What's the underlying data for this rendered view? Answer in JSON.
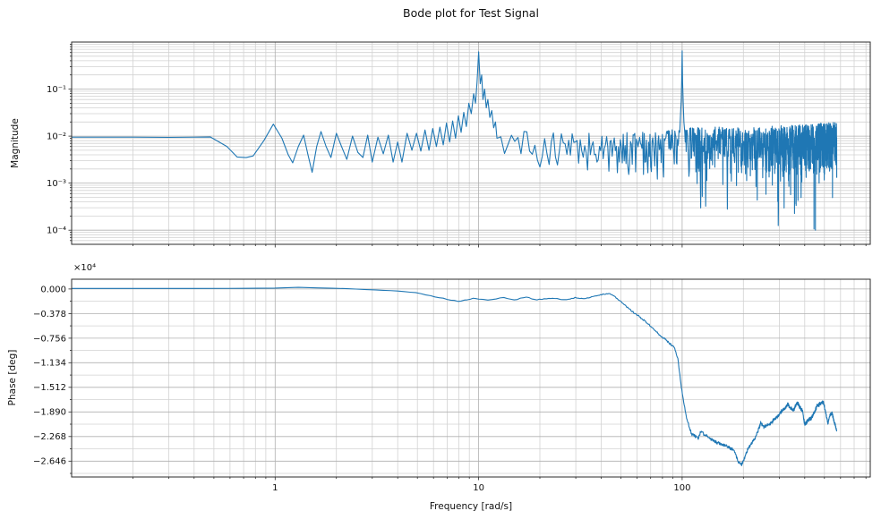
{
  "figure_title": "Bode plot for Test Signal",
  "colors": {
    "line": "#1f77b4",
    "grid_major": "#b0b0b0",
    "grid_minor": "#d2d2d2",
    "spine": "#2b2b2b",
    "text": "#111111",
    "background": "#ffffff"
  },
  "chart_data": [
    {
      "type": "line",
      "id": "magnitude",
      "ylabel": "Magnitude",
      "xscale": "log",
      "yscale": "log",
      "xlim": [
        0.1,
        840
      ],
      "ylim": [
        5e-05,
        1.0
      ],
      "grid": "both",
      "x_major_ticks": [
        1,
        10,
        100
      ],
      "x_major_labels": [
        "1",
        "10",
        "100"
      ],
      "show_x_labels": false,
      "y_major_ticks": [
        0.1,
        0.01,
        0.001,
        0.0001
      ],
      "y_major_labels": [
        "10⁻¹",
        "10⁻²",
        "10⁻³",
        "10⁻⁴"
      ],
      "segments": [
        {
          "type": "points",
          "pts": [
            [
              0.1,
              0.0095
            ],
            [
              0.2,
              0.0095
            ],
            [
              0.3,
              0.0094
            ],
            [
              0.4,
              0.0095
            ],
            [
              0.48,
              0.0096
            ],
            [
              0.58,
              0.006
            ],
            [
              0.65,
              0.0036
            ],
            [
              0.72,
              0.0035
            ],
            [
              0.78,
              0.0038
            ],
            [
              0.88,
              0.008
            ],
            [
              0.98,
              0.018
            ],
            [
              1.08,
              0.009
            ],
            [
              1.16,
              0.004
            ],
            [
              1.22,
              0.0027
            ],
            [
              1.3,
              0.006
            ],
            [
              1.38,
              0.0105
            ],
            [
              1.45,
              0.004
            ],
            [
              1.52,
              0.0017
            ],
            [
              1.6,
              0.006
            ],
            [
              1.68,
              0.0125
            ],
            [
              1.78,
              0.006
            ],
            [
              1.88,
              0.0035
            ],
            [
              2.0,
              0.0115
            ],
            [
              2.12,
              0.006
            ],
            [
              2.25,
              0.0032
            ],
            [
              2.4,
              0.01
            ],
            [
              2.55,
              0.0045
            ],
            [
              2.7,
              0.0035
            ],
            [
              2.85,
              0.0105
            ],
            [
              3.0,
              0.0028
            ],
            [
              3.2,
              0.0095
            ],
            [
              3.4,
              0.0042
            ],
            [
              3.6,
              0.0105
            ],
            [
              3.8,
              0.0028
            ],
            [
              4.0,
              0.0075
            ],
            [
              4.2,
              0.0028
            ],
            [
              4.45,
              0.0115
            ],
            [
              4.7,
              0.005
            ],
            [
              4.95,
              0.0115
            ],
            [
              5.2,
              0.0048
            ],
            [
              5.45,
              0.0135
            ],
            [
              5.7,
              0.005
            ],
            [
              5.95,
              0.0145
            ],
            [
              6.2,
              0.006
            ],
            [
              6.45,
              0.0155
            ],
            [
              6.7,
              0.0065
            ],
            [
              6.95,
              0.019
            ],
            [
              7.2,
              0.0075
            ],
            [
              7.45,
              0.021
            ],
            [
              7.7,
              0.009
            ],
            [
              7.95,
              0.027
            ],
            [
              8.2,
              0.012
            ],
            [
              8.45,
              0.032
            ],
            [
              8.7,
              0.016
            ],
            [
              8.95,
              0.05
            ],
            [
              9.2,
              0.03
            ],
            [
              9.45,
              0.08
            ],
            [
              9.65,
              0.05
            ],
            [
              9.82,
              0.14
            ],
            [
              10.0,
              0.62
            ],
            [
              10.18,
              0.13
            ],
            [
              10.35,
              0.2
            ],
            [
              10.5,
              0.06
            ],
            [
              10.7,
              0.1
            ],
            [
              10.9,
              0.04
            ],
            [
              11.1,
              0.06
            ],
            [
              11.35,
              0.025
            ],
            [
              11.6,
              0.035
            ],
            [
              11.85,
              0.015
            ],
            [
              12.1,
              0.02
            ],
            [
              12.3,
              0.009
            ]
          ]
        },
        {
          "type": "noise",
          "f0": 12.85,
          "f1": 96.5,
          "df": 0.55,
          "seed": 1234567,
          "hi": [
            [
              12,
              -1.85
            ],
            [
              30,
              -1.95
            ],
            [
              60,
              -1.9
            ],
            [
              96,
              -1.85
            ]
          ],
          "depth": 1.05,
          "spike_p": 0.05,
          "spike_extra": 1.1,
          "floor": -3.6
        },
        {
          "type": "points",
          "pts": [
            [
              97.3,
              0.012
            ],
            [
              98.2,
              0.03
            ],
            [
              99.0,
              0.06
            ],
            [
              99.5,
              0.16
            ],
            [
              100.0,
              0.65
            ],
            [
              100.5,
              0.14
            ],
            [
              101.2,
              0.05
            ],
            [
              102.0,
              0.02
            ],
            [
              103.0,
              0.012
            ]
          ]
        },
        {
          "type": "noise",
          "f0": 103.55,
          "f1": 575,
          "df": 0.55,
          "seed": 424242,
          "hi": [
            [
              103,
              -1.78
            ],
            [
              200,
              -1.82
            ],
            [
              400,
              -1.75
            ],
            [
              575,
              -1.68
            ]
          ],
          "depth": 1.25,
          "spike_p": 0.07,
          "spike_extra": 1.6,
          "floor": -4.1
        }
      ]
    },
    {
      "type": "line",
      "id": "phase",
      "ylabel": "Phase [deg]",
      "xlabel": "Frequency [rad/s]",
      "xscale": "log",
      "yscale": "linear",
      "xlim": [
        0.1,
        840
      ],
      "ylim": [
        -28900,
        1500
      ],
      "grid": "both",
      "x_major_ticks": [
        1,
        10,
        100
      ],
      "x_major_labels": [
        "1",
        "10",
        "100"
      ],
      "show_x_labels": true,
      "y_major_ticks": [
        0,
        -3780,
        -7560,
        -11340,
        -15120,
        -18900,
        -22680,
        -26460
      ],
      "y_major_labels": [
        "0.000",
        "−0.378",
        "−0.756",
        "−1.134",
        "−1.512",
        "−1.890",
        "−2.268",
        "−2.646"
      ],
      "y_minor_step": 1890,
      "offset_text": "×10⁴",
      "base_anchors": [
        [
          0.1,
          80
        ],
        [
          0.5,
          80
        ],
        [
          1.0,
          120
        ],
        [
          1.3,
          260
        ],
        [
          1.7,
          150
        ],
        [
          2.2,
          60
        ],
        [
          3.0,
          -120
        ],
        [
          3.9,
          -290
        ],
        [
          4.9,
          -560
        ],
        [
          6.2,
          -1240
        ],
        [
          7.9,
          -1930
        ],
        [
          8.6,
          -1650
        ],
        [
          9.5,
          -1450
        ],
        [
          11,
          -1750
        ],
        [
          13,
          -1350
        ],
        [
          15,
          -1600
        ],
        [
          17,
          -1300
        ],
        [
          20,
          -1650
        ],
        [
          23,
          -1400
        ],
        [
          26,
          -1700
        ],
        [
          30,
          -1350
        ],
        [
          33,
          -1600
        ],
        [
          36,
          -1200
        ],
        [
          40,
          -900
        ],
        [
          43,
          -700
        ],
        [
          45,
          -830
        ],
        [
          47,
          -1300
        ],
        [
          50,
          -1930
        ],
        [
          57,
          -3440
        ],
        [
          65,
          -4810
        ],
        [
          74,
          -6460
        ],
        [
          80,
          -7420
        ],
        [
          86,
          -8250
        ],
        [
          91,
          -8930
        ],
        [
          95,
          -10500
        ],
        [
          100,
          -16000
        ],
        [
          105,
          -19790
        ],
        [
          111,
          -22270
        ],
        [
          116,
          -22600
        ],
        [
          120,
          -22960
        ],
        [
          124,
          -21700
        ],
        [
          128,
          -22400
        ],
        [
          133,
          -22700
        ],
        [
          140,
          -23230
        ],
        [
          150,
          -23700
        ],
        [
          157,
          -23920
        ],
        [
          168,
          -24300
        ],
        [
          180,
          -24750
        ],
        [
          188,
          -26500
        ],
        [
          196,
          -27080
        ],
        [
          205,
          -25500
        ],
        [
          212,
          -24330
        ],
        [
          226,
          -23230
        ],
        [
          236,
          -21800
        ],
        [
          243,
          -20600
        ],
        [
          252,
          -21200
        ],
        [
          260,
          -21000
        ],
        [
          270,
          -20800
        ],
        [
          285,
          -20000
        ],
        [
          297,
          -19500
        ],
        [
          310,
          -18700
        ],
        [
          320,
          -18400
        ],
        [
          330,
          -17700
        ],
        [
          340,
          -18300
        ],
        [
          352,
          -18700
        ],
        [
          362,
          -17800
        ],
        [
          370,
          -17500
        ],
        [
          380,
          -18300
        ],
        [
          390,
          -18700
        ],
        [
          400,
          -20900
        ],
        [
          415,
          -20200
        ],
        [
          432,
          -19800
        ],
        [
          445,
          -19000
        ],
        [
          460,
          -18000
        ],
        [
          478,
          -17600
        ],
        [
          495,
          -17400
        ],
        [
          505,
          -18800
        ],
        [
          520,
          -20600
        ],
        [
          532,
          -19400
        ],
        [
          545,
          -19100
        ],
        [
          560,
          -20500
        ],
        [
          575,
          -21900
        ]
      ],
      "noise": {
        "seed": 987654,
        "df_low": 0.3,
        "df": 0.55,
        "f_switch": 10,
        "f_end": 575,
        "amp_anchors": [
          [
            0.1,
            5
          ],
          [
            3,
            15
          ],
          [
            6,
            40
          ],
          [
            9,
            90
          ],
          [
            12,
            110
          ],
          [
            40,
            130
          ],
          [
            80,
            170
          ],
          [
            100,
            260
          ],
          [
            130,
            280
          ],
          [
            200,
            320
          ],
          [
            575,
            340
          ]
        ]
      }
    }
  ]
}
